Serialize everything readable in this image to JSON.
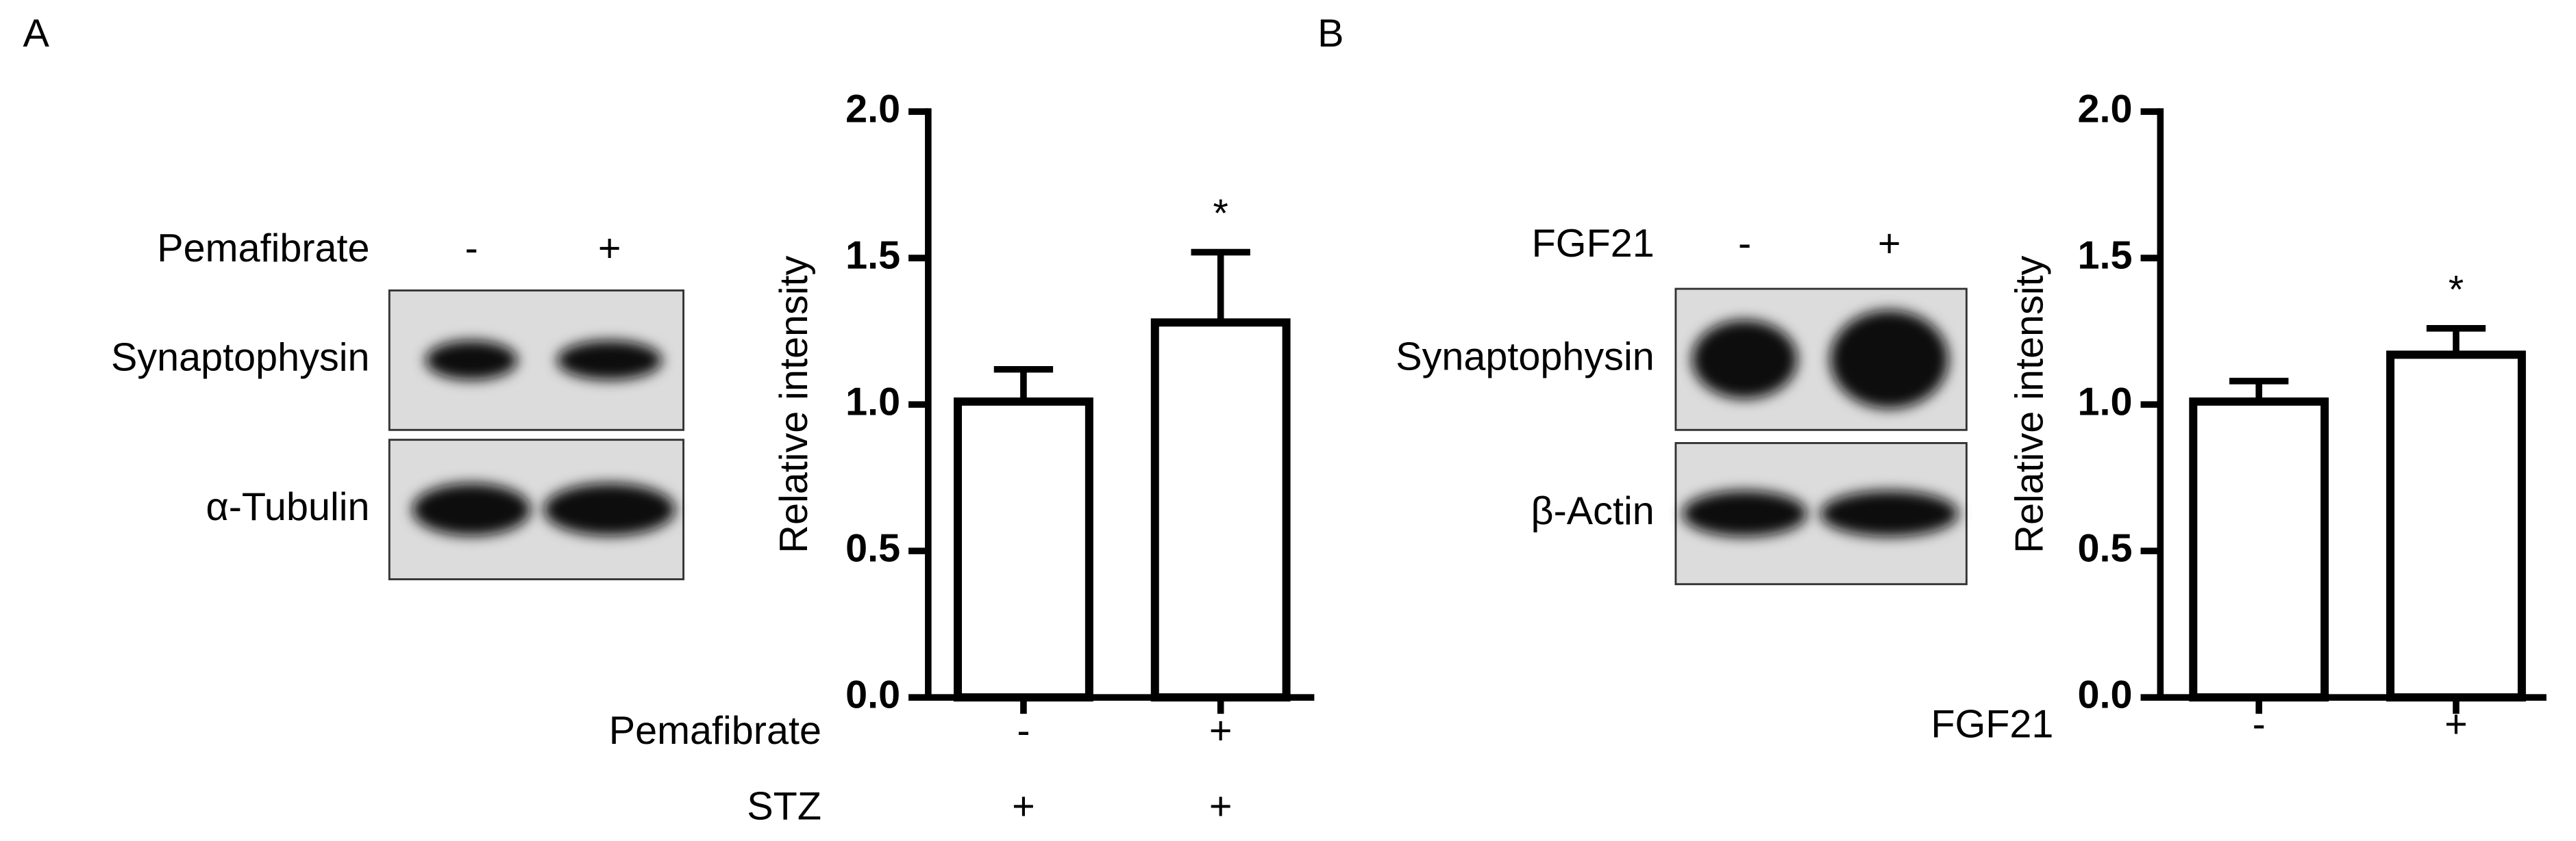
{
  "chart_data": [
    {
      "type": "bar",
      "panel": "A",
      "y_label": "Relative intensity",
      "x_rows": [
        {
          "name": "Pemafibrate",
          "labels": [
            "-",
            "+"
          ]
        },
        {
          "name": "STZ",
          "labels": [
            "+",
            "+"
          ]
        }
      ],
      "values": [
        1.01,
        1.28
      ],
      "errors": [
        0.11,
        0.24
      ],
      "significance": [
        null,
        "*"
      ],
      "color": "#ffffff",
      "ylim": [
        0,
        2
      ],
      "yticks": [
        {
          "value": 0,
          "label": "0.0"
        },
        0.5,
        {
          "value": 1,
          "label": "1.0"
        },
        1.5,
        {
          "value": 2,
          "label": "2.0"
        }
      ],
      "blot": {
        "treatment": "Pemafibrate",
        "lanes": [
          "-",
          "+"
        ],
        "bands": [
          "Synaptophysin",
          "α-Tubulin"
        ]
      }
    },
    {
      "type": "bar",
      "panel": "B",
      "y_label": "Relative intensity",
      "x_rows": [
        {
          "name": "FGF21",
          "labels": [
            "-",
            "+"
          ]
        }
      ],
      "values": [
        1.01,
        1.17
      ],
      "errors": [
        0.07,
        0.09
      ],
      "significance": [
        null,
        "*"
      ],
      "color": "#ffffff",
      "ylim": [
        0,
        2
      ],
      "yticks": [
        {
          "value": 0,
          "label": "0.0"
        },
        0.5,
        {
          "value": 1,
          "label": "1.0"
        },
        1.5,
        {
          "value": 2,
          "label": "2.0"
        }
      ],
      "blot": {
        "treatment": "FGF21",
        "lanes": [
          "-",
          "+"
        ],
        "bands": [
          "Synaptophysin",
          "β-Actin"
        ]
      }
    }
  ]
}
